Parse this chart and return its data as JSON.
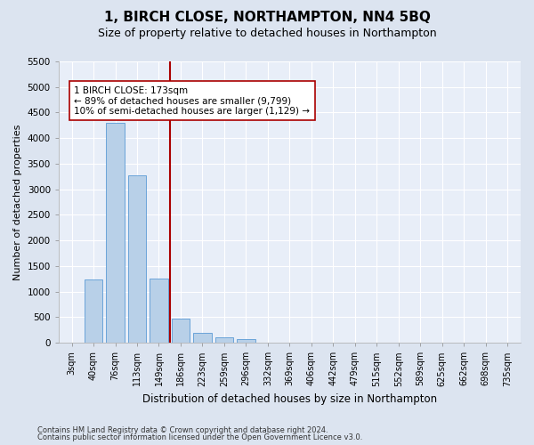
{
  "title": "1, BIRCH CLOSE, NORTHAMPTON, NN4 5BQ",
  "subtitle": "Size of property relative to detached houses in Northampton",
  "xlabel": "Distribution of detached houses by size in Northampton",
  "ylabel": "Number of detached properties",
  "categories": [
    "3sqm",
    "40sqm",
    "76sqm",
    "113sqm",
    "149sqm",
    "186sqm",
    "223sqm",
    "259sqm",
    "296sqm",
    "332sqm",
    "369sqm",
    "406sqm",
    "442sqm",
    "479sqm",
    "515sqm",
    "552sqm",
    "589sqm",
    "625sqm",
    "662sqm",
    "698sqm",
    "735sqm"
  ],
  "values": [
    0,
    1230,
    4300,
    3280,
    1260,
    480,
    200,
    100,
    70,
    0,
    0,
    0,
    0,
    0,
    0,
    0,
    0,
    0,
    0,
    0,
    0
  ],
  "bar_color": "#b8d0e8",
  "bar_edge_color": "#5b9bd5",
  "vline_color": "#aa0000",
  "annotation_text": "1 BIRCH CLOSE: 173sqm\n← 89% of detached houses are smaller (9,799)\n10% of semi-detached houses are larger (1,129) →",
  "annotation_box_color": "#ffffff",
  "annotation_box_edge": "#aa0000",
  "ylim": [
    0,
    5500
  ],
  "yticks": [
    0,
    500,
    1000,
    1500,
    2000,
    2500,
    3000,
    3500,
    4000,
    4500,
    5000,
    5500
  ],
  "footnote1": "Contains HM Land Registry data © Crown copyright and database right 2024.",
  "footnote2": "Contains public sector information licensed under the Open Government Licence v3.0.",
  "background_color": "#e8eef8",
  "fig_background_color": "#dce4f0"
}
